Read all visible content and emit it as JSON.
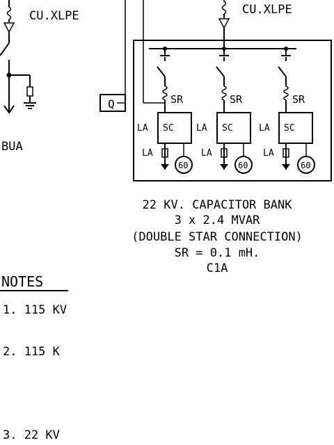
{
  "cable_label": "CU.XLPE",
  "left_label": "BUA",
  "relay_label": "Q",
  "branch": {
    "reactor": "SR",
    "arrester": "LA",
    "sc": "SC",
    "meter": "60"
  },
  "caption_lines": [
    "22 KV. CAPACITOR BANK",
    "3 x 2.4 MVAR",
    "(DOUBLE STAR CONNECTION)",
    "SR = 0.1 mH.",
    "C1A"
  ],
  "notes_heading": "NOTES",
  "notes": [
    "1. 115 KV",
    "2. 115 K",
    "3. 22 KV"
  ]
}
